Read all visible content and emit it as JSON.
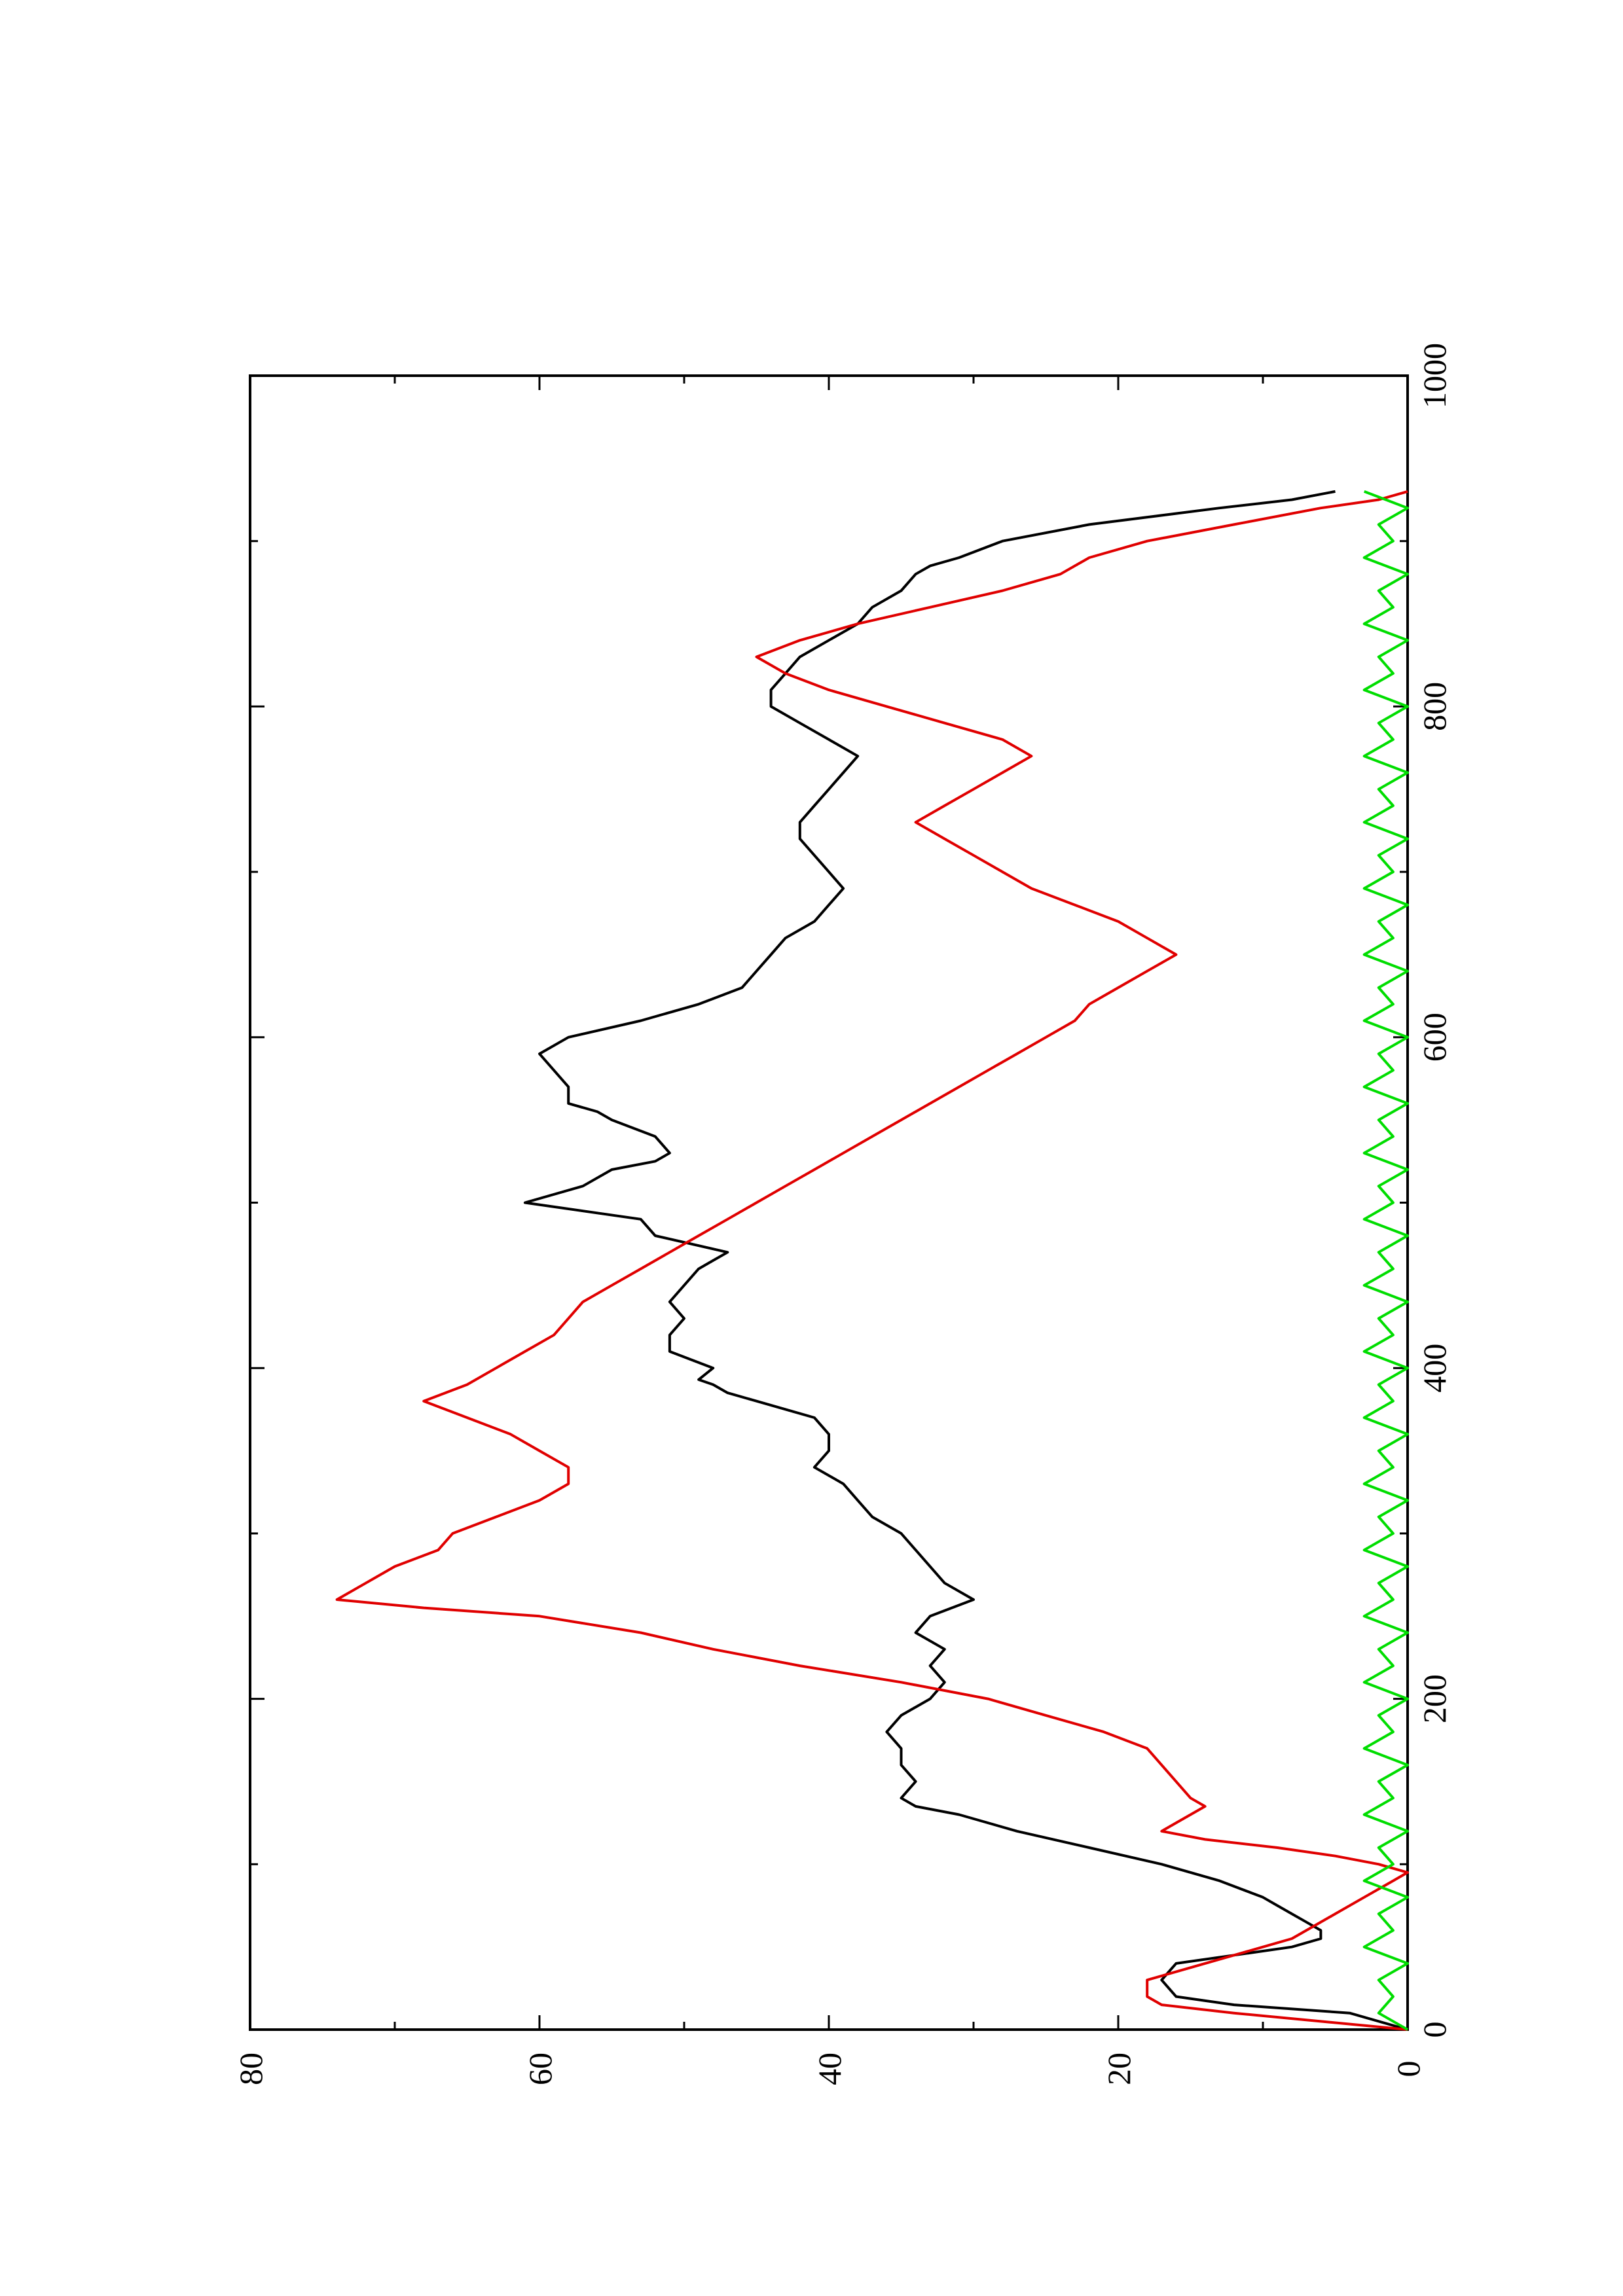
{
  "chart_data": {
    "type": "line",
    "orientation": "rotated-90-ccw",
    "title": "",
    "xlabel": "",
    "ylabel": "",
    "xlim": [
      0,
      1000
    ],
    "ylim": [
      0,
      80
    ],
    "x_ticks": [
      "0",
      "200",
      "400",
      "600",
      "800",
      "1000"
    ],
    "y_ticks": [
      "0",
      "20",
      "40",
      "60",
      "80"
    ],
    "grid": false,
    "legend": "none",
    "series": [
      {
        "color": "#000000",
        "points": [
          [
            0,
            0
          ],
          [
            10,
            4
          ],
          [
            15,
            12
          ],
          [
            20,
            16
          ],
          [
            30,
            17
          ],
          [
            40,
            16
          ],
          [
            45,
            12
          ],
          [
            50,
            8
          ],
          [
            55,
            6
          ],
          [
            60,
            6
          ],
          [
            65,
            7
          ],
          [
            70,
            8
          ],
          [
            75,
            9
          ],
          [
            80,
            10
          ],
          [
            90,
            13
          ],
          [
            100,
            17
          ],
          [
            110,
            22
          ],
          [
            120,
            27
          ],
          [
            130,
            31
          ],
          [
            135,
            34
          ],
          [
            140,
            35
          ],
          [
            150,
            34
          ],
          [
            160,
            35
          ],
          [
            170,
            35
          ],
          [
            180,
            36
          ],
          [
            190,
            35
          ],
          [
            200,
            33
          ],
          [
            210,
            32
          ],
          [
            220,
            33
          ],
          [
            230,
            32
          ],
          [
            240,
            34
          ],
          [
            250,
            33
          ],
          [
            260,
            30
          ],
          [
            270,
            32
          ],
          [
            280,
            33
          ],
          [
            290,
            34
          ],
          [
            300,
            35
          ],
          [
            310,
            37
          ],
          [
            320,
            38
          ],
          [
            330,
            39
          ],
          [
            340,
            41
          ],
          [
            350,
            40
          ],
          [
            360,
            40
          ],
          [
            370,
            41
          ],
          [
            380,
            45
          ],
          [
            385,
            47
          ],
          [
            390,
            48
          ],
          [
            393,
            49
          ],
          [
            400,
            48
          ],
          [
            410,
            51
          ],
          [
            420,
            51
          ],
          [
            430,
            50
          ],
          [
            440,
            51
          ],
          [
            450,
            50
          ],
          [
            460,
            49
          ],
          [
            465,
            48
          ],
          [
            470,
            47
          ],
          [
            480,
            52
          ],
          [
            490,
            53
          ],
          [
            500,
            61
          ],
          [
            510,
            57
          ],
          [
            520,
            55
          ],
          [
            525,
            52
          ],
          [
            530,
            51
          ],
          [
            540,
            52
          ],
          [
            550,
            55
          ],
          [
            555,
            56
          ],
          [
            560,
            58
          ],
          [
            570,
            58
          ],
          [
            580,
            59
          ],
          [
            590,
            60
          ],
          [
            600,
            58
          ],
          [
            610,
            53
          ],
          [
            620,
            49
          ],
          [
            630,
            46
          ],
          [
            640,
            45
          ],
          [
            650,
            44
          ],
          [
            660,
            43
          ],
          [
            670,
            41
          ],
          [
            680,
            40
          ],
          [
            690,
            39
          ],
          [
            700,
            40
          ],
          [
            710,
            41
          ],
          [
            720,
            42
          ],
          [
            730,
            42
          ],
          [
            740,
            41
          ],
          [
            750,
            40
          ],
          [
            760,
            39
          ],
          [
            770,
            38
          ],
          [
            780,
            40
          ],
          [
            790,
            42
          ],
          [
            800,
            44
          ],
          [
            810,
            44
          ],
          [
            820,
            43
          ],
          [
            830,
            42
          ],
          [
            840,
            40
          ],
          [
            850,
            38
          ],
          [
            860,
            37
          ],
          [
            870,
            35
          ],
          [
            880,
            34
          ],
          [
            885,
            33
          ],
          [
            890,
            31
          ],
          [
            900,
            28
          ],
          [
            910,
            22
          ],
          [
            920,
            13
          ],
          [
            925,
            8
          ],
          [
            930,
            5
          ]
        ]
      },
      {
        "color": "#e00000",
        "points": [
          [
            0,
            0
          ],
          [
            5,
            6
          ],
          [
            10,
            12
          ],
          [
            15,
            17
          ],
          [
            20,
            18
          ],
          [
            30,
            18
          ],
          [
            35,
            16
          ],
          [
            40,
            14
          ],
          [
            45,
            12
          ],
          [
            50,
            10
          ],
          [
            55,
            8
          ],
          [
            60,
            7
          ],
          [
            70,
            5
          ],
          [
            80,
            3
          ],
          [
            90,
            1
          ],
          [
            95,
            0
          ],
          [
            100,
            2
          ],
          [
            105,
            5
          ],
          [
            110,
            9
          ],
          [
            115,
            14
          ],
          [
            120,
            17
          ],
          [
            125,
            16
          ],
          [
            130,
            15
          ],
          [
            135,
            14
          ],
          [
            140,
            15
          ],
          [
            150,
            16
          ],
          [
            160,
            17
          ],
          [
            170,
            18
          ],
          [
            180,
            21
          ],
          [
            190,
            25
          ],
          [
            200,
            29
          ],
          [
            210,
            35
          ],
          [
            220,
            42
          ],
          [
            230,
            48
          ],
          [
            240,
            53
          ],
          [
            250,
            60
          ],
          [
            255,
            68
          ],
          [
            260,
            74
          ],
          [
            270,
            72
          ],
          [
            280,
            70
          ],
          [
            290,
            67
          ],
          [
            300,
            66
          ],
          [
            310,
            63
          ],
          [
            320,
            60
          ],
          [
            330,
            58
          ],
          [
            340,
            58
          ],
          [
            350,
            60
          ],
          [
            360,
            62
          ],
          [
            370,
            65
          ],
          [
            380,
            68
          ],
          [
            390,
            65
          ],
          [
            400,
            63
          ],
          [
            410,
            61
          ],
          [
            420,
            59
          ],
          [
            430,
            58
          ],
          [
            440,
            57
          ],
          [
            450,
            55
          ],
          [
            460,
            53
          ],
          [
            470,
            51
          ],
          [
            480,
            49
          ],
          [
            490,
            47
          ],
          [
            500,
            45
          ],
          [
            510,
            43
          ],
          [
            520,
            41
          ],
          [
            530,
            39
          ],
          [
            540,
            37
          ],
          [
            550,
            35
          ],
          [
            560,
            33
          ],
          [
            570,
            31
          ],
          [
            580,
            29
          ],
          [
            590,
            27
          ],
          [
            600,
            25
          ],
          [
            610,
            23
          ],
          [
            620,
            22
          ],
          [
            630,
            20
          ],
          [
            640,
            18
          ],
          [
            650,
            16
          ],
          [
            660,
            18
          ],
          [
            670,
            20
          ],
          [
            680,
            23
          ],
          [
            690,
            26
          ],
          [
            700,
            28
          ],
          [
            710,
            30
          ],
          [
            720,
            32
          ],
          [
            730,
            34
          ],
          [
            740,
            32
          ],
          [
            750,
            30
          ],
          [
            760,
            28
          ],
          [
            770,
            26
          ],
          [
            780,
            28
          ],
          [
            790,
            32
          ],
          [
            800,
            36
          ],
          [
            810,
            40
          ],
          [
            820,
            43
          ],
          [
            830,
            45
          ],
          [
            840,
            42
          ],
          [
            850,
            38
          ],
          [
            860,
            33
          ],
          [
            870,
            28
          ],
          [
            880,
            24
          ],
          [
            890,
            22
          ],
          [
            900,
            18
          ],
          [
            910,
            12
          ],
          [
            920,
            6
          ],
          [
            925,
            2
          ],
          [
            930,
            0
          ]
        ]
      },
      {
        "color": "#00dd00",
        "points": [
          [
            0,
            0
          ],
          [
            10,
            2
          ],
          [
            20,
            1
          ],
          [
            30,
            2
          ],
          [
            40,
            0
          ],
          [
            50,
            3
          ],
          [
            60,
            1
          ],
          [
            70,
            2
          ],
          [
            80,
            0
          ],
          [
            90,
            3
          ],
          [
            100,
            1
          ],
          [
            110,
            2
          ],
          [
            120,
            0
          ],
          [
            130,
            3
          ],
          [
            140,
            1
          ],
          [
            150,
            2
          ],
          [
            160,
            0
          ],
          [
            170,
            3
          ],
          [
            180,
            1
          ],
          [
            190,
            2
          ],
          [
            200,
            0
          ],
          [
            210,
            3
          ],
          [
            220,
            1
          ],
          [
            230,
            2
          ],
          [
            240,
            0
          ],
          [
            250,
            3
          ],
          [
            260,
            1
          ],
          [
            270,
            2
          ],
          [
            280,
            0
          ],
          [
            290,
            3
          ],
          [
            300,
            1
          ],
          [
            310,
            2
          ],
          [
            320,
            0
          ],
          [
            330,
            3
          ],
          [
            340,
            1
          ],
          [
            350,
            2
          ],
          [
            360,
            0
          ],
          [
            370,
            3
          ],
          [
            380,
            1
          ],
          [
            390,
            2
          ],
          [
            400,
            0
          ],
          [
            410,
            3
          ],
          [
            420,
            1
          ],
          [
            430,
            2
          ],
          [
            440,
            0
          ],
          [
            450,
            3
          ],
          [
            460,
            1
          ],
          [
            470,
            2
          ],
          [
            480,
            0
          ],
          [
            490,
            3
          ],
          [
            500,
            1
          ],
          [
            510,
            2
          ],
          [
            520,
            0
          ],
          [
            530,
            3
          ],
          [
            540,
            1
          ],
          [
            550,
            2
          ],
          [
            560,
            0
          ],
          [
            570,
            3
          ],
          [
            580,
            1
          ],
          [
            590,
            2
          ],
          [
            600,
            0
          ],
          [
            610,
            3
          ],
          [
            620,
            1
          ],
          [
            630,
            2
          ],
          [
            640,
            0
          ],
          [
            650,
            3
          ],
          [
            660,
            1
          ],
          [
            670,
            2
          ],
          [
            680,
            0
          ],
          [
            690,
            3
          ],
          [
            700,
            1
          ],
          [
            710,
            2
          ],
          [
            720,
            0
          ],
          [
            730,
            3
          ],
          [
            740,
            1
          ],
          [
            750,
            2
          ],
          [
            760,
            0
          ],
          [
            770,
            3
          ],
          [
            780,
            1
          ],
          [
            790,
            2
          ],
          [
            800,
            0
          ],
          [
            810,
            3
          ],
          [
            820,
            1
          ],
          [
            830,
            2
          ],
          [
            840,
            0
          ],
          [
            850,
            3
          ],
          [
            860,
            1
          ],
          [
            870,
            2
          ],
          [
            880,
            0
          ],
          [
            890,
            3
          ],
          [
            900,
            1
          ],
          [
            910,
            2
          ],
          [
            920,
            0
          ],
          [
            930,
            3
          ]
        ]
      }
    ]
  }
}
